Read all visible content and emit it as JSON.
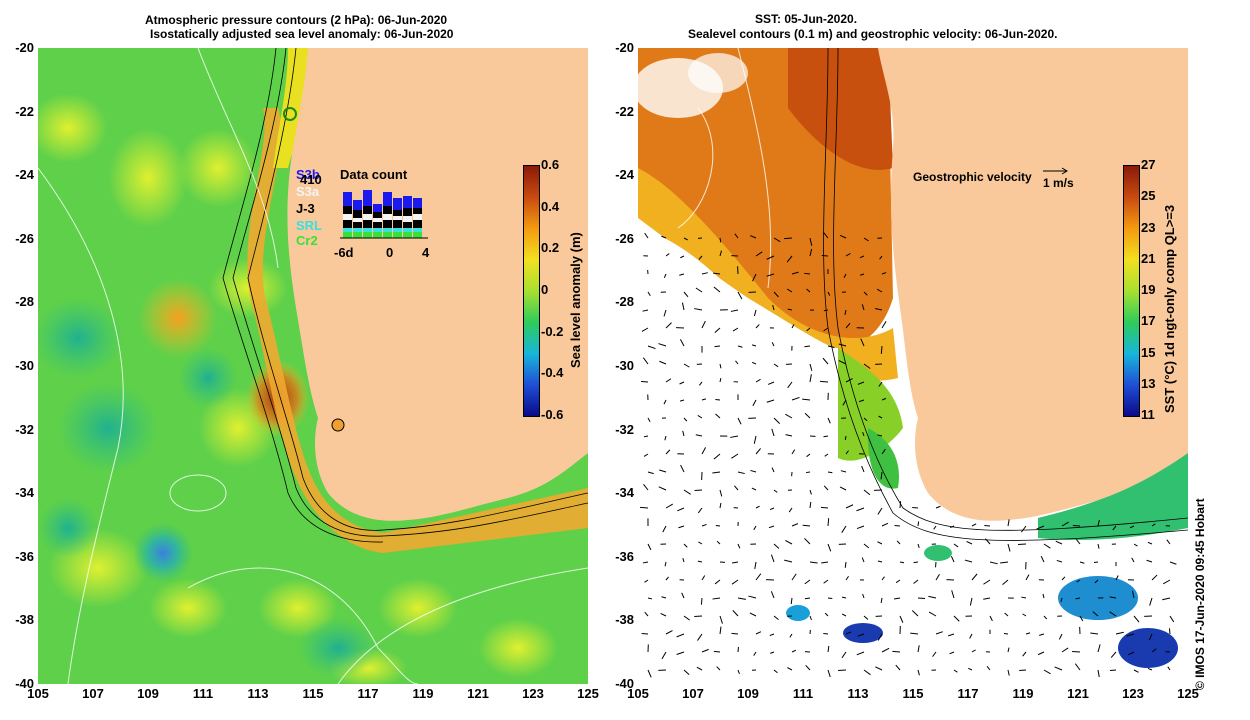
{
  "left_panel": {
    "title_line1": "Atmospheric pressure contours (2 hPa): 06-Jun-2020",
    "title_line2": "Isostatically adjusted sea level anomaly: 06-Jun-2020",
    "colorbar": {
      "label": "Sea level anomaly (m)",
      "ticks": [
        "0.6",
        "0.4",
        "0.2",
        "0",
        "-0.2",
        "-0.4",
        "-0.6"
      ],
      "colors": [
        "#0a0a8a",
        "#1f4fd6",
        "#18b6d8",
        "#2ecc5a",
        "#a8e030",
        "#f2e020",
        "#f49a10",
        "#c84a10",
        "#8a1a08"
      ]
    },
    "legend": {
      "title": "Data count",
      "satellites": [
        {
          "name": "S3b",
          "color": "#1a1aee"
        },
        {
          "name": "410",
          "color": "#000000"
        },
        {
          "name": "S3a",
          "color": "#f4f4f4"
        },
        {
          "name": "J-3",
          "color": "#000000"
        },
        {
          "name": "SRL",
          "color": "#38e0e0"
        },
        {
          "name": "Cr2",
          "color": "#38e038"
        }
      ],
      "axis_ticks": [
        "-6d",
        "0",
        "4"
      ]
    }
  },
  "right_panel": {
    "title_line1": "SST: 05-Jun-2020.",
    "title_line2": "Sealevel contours (0.1 m) and geostrophic velocity: 06-Jun-2020.",
    "geostrophic_label": "Geostrophic velocity",
    "scale_label": "1 m/s",
    "colorbar": {
      "label": "SST (°C) 1d ngt-only comp QL>=3",
      "ticks": [
        "27",
        "25",
        "23",
        "21",
        "19",
        "17",
        "15",
        "13",
        "11"
      ],
      "colors": [
        "#0a0a8a",
        "#1f4fd6",
        "#18b6d8",
        "#2ecc5a",
        "#a8e030",
        "#f2e020",
        "#f49a10",
        "#c84a10",
        "#8a1a08"
      ]
    }
  },
  "axes": {
    "y_ticks": [
      "-20",
      "-22",
      "-24",
      "-26",
      "-28",
      "-30",
      "-32",
      "-34",
      "-36",
      "-38",
      "-40"
    ],
    "x_ticks": [
      "105",
      "107",
      "109",
      "111",
      "113",
      "115",
      "117",
      "119",
      "121",
      "123",
      "125"
    ]
  },
  "credit": "©  IMOS 17-Jun-2020 09:45 Hobart",
  "land_color": "#f9c99c"
}
